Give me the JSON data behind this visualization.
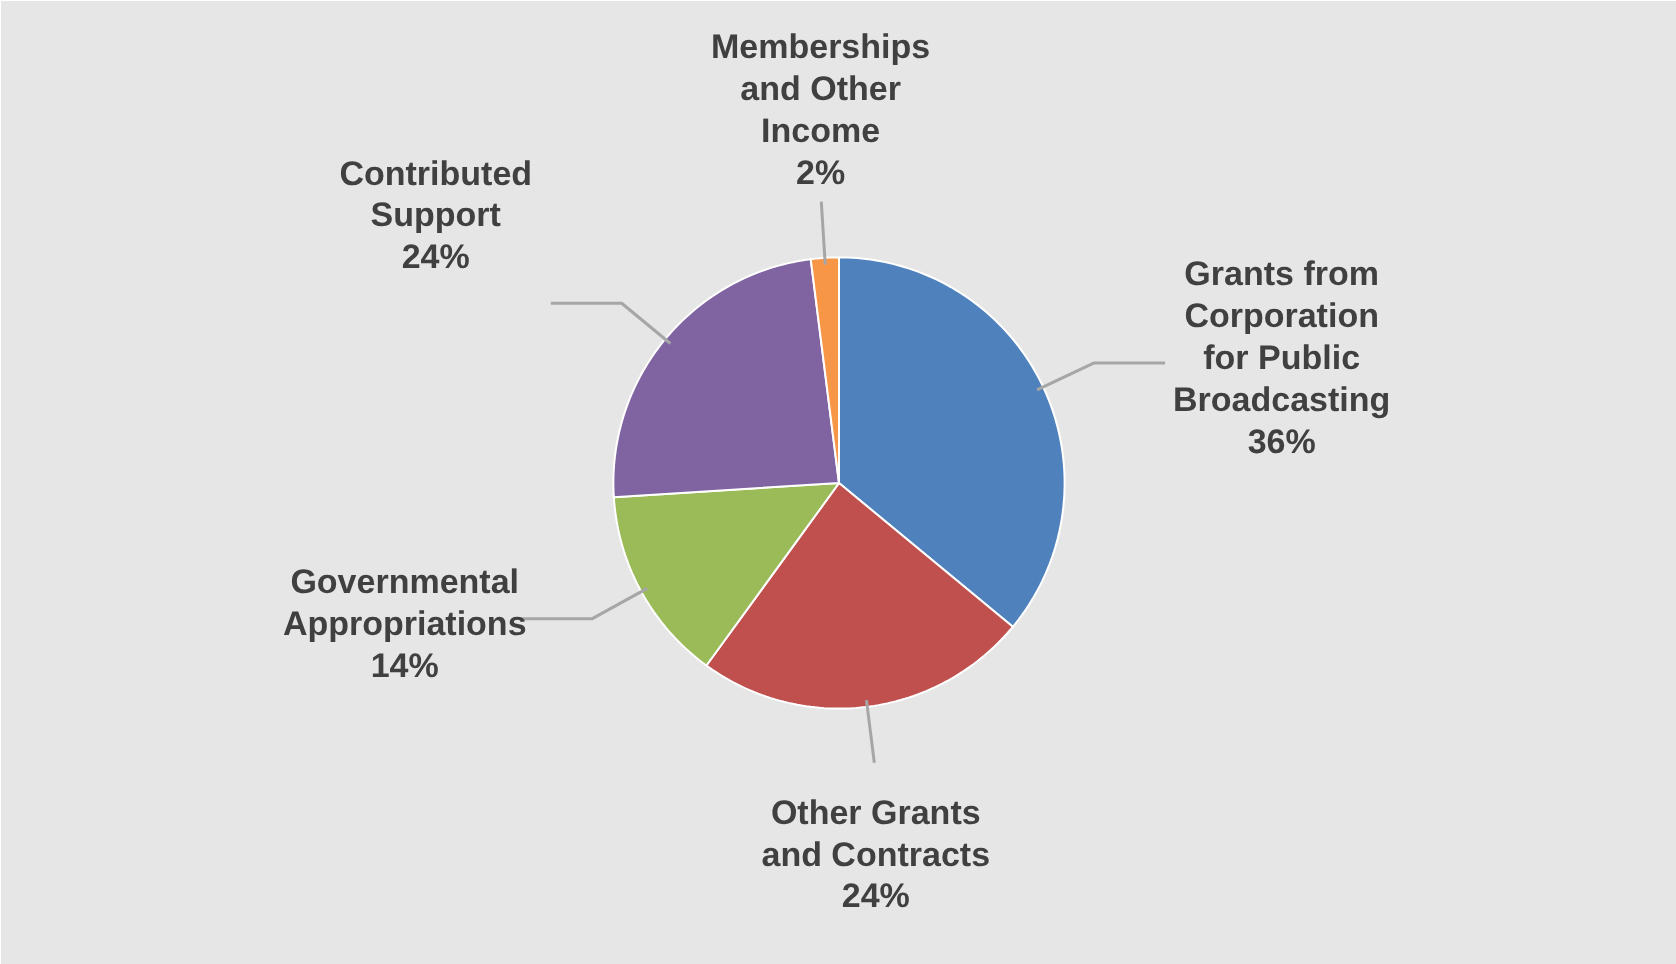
{
  "chart_data": {
    "type": "pie",
    "categories": [
      "Grants from Corporation for Public Broadcasting",
      "Other Grants and Contracts",
      "Governmental Appropriations",
      "Contributed Support",
      "Memberships and Other Income"
    ],
    "values": [
      36,
      24,
      14,
      24,
      2
    ],
    "value_labels": [
      "36%",
      "24%",
      "14%",
      "24%",
      "2%"
    ],
    "colors": [
      "#4f81bd",
      "#c0504d",
      "#9bbb59",
      "#8064a2",
      "#f79646"
    ]
  }
}
